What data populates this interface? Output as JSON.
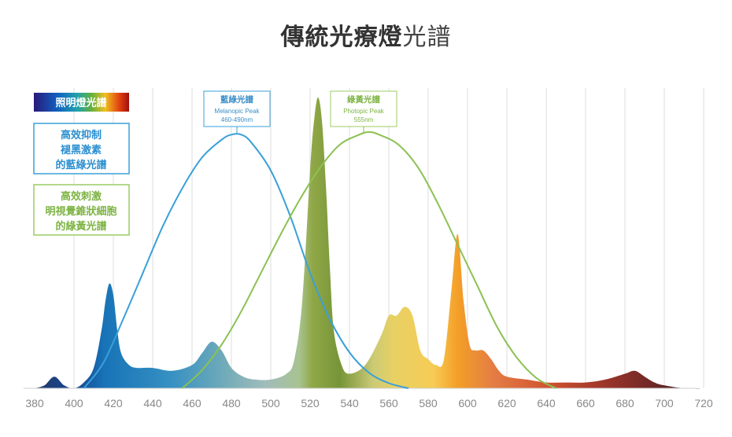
{
  "title": {
    "bold": "傳統光療燈",
    "light": "光譜"
  },
  "legend": {
    "spectrum": "照明燈光譜",
    "blue": [
      "高效抑制",
      "褪黑激素",
      "的藍綠光譜"
    ],
    "green": [
      "高效刺激",
      "明視覺錐狀細胞",
      "的綠黃光譜"
    ]
  },
  "annotations": {
    "melanopic": {
      "title": "藍綠光譜",
      "line1": "Melanopic Peak",
      "line2": "460-490nm"
    },
    "photopic": {
      "title": "綠黃光譜",
      "line1": "Photopic Peak",
      "line2": "555nm"
    }
  },
  "colors": {
    "blue_curve": "#3aa0d8",
    "green_curve": "#8cc152",
    "frame_green": "#9ccc65"
  },
  "chart_data": {
    "type": "line",
    "x_ticks": [
      380,
      400,
      420,
      440,
      460,
      480,
      500,
      520,
      540,
      560,
      580,
      600,
      620,
      640,
      660,
      680,
      700,
      720
    ],
    "xlim": [
      380,
      720
    ],
    "ylim": [
      0,
      1
    ],
    "grid": true,
    "series": [
      {
        "kind": "spectrum",
        "x": [
          380,
          385,
          390,
          395,
          400,
          405,
          410,
          414,
          416,
          418,
          420,
          422,
          424,
          428,
          432,
          440,
          450,
          460,
          465,
          470,
          475,
          480,
          486,
          492,
          500,
          508,
          512,
          516,
          520,
          522,
          524,
          526,
          528,
          530,
          532,
          536,
          540,
          548,
          556,
          560,
          564,
          568,
          572,
          576,
          580,
          584,
          588,
          592,
          595,
          598,
          601,
          604,
          608,
          612,
          616,
          620,
          630,
          640,
          650,
          660,
          670,
          680,
          685,
          690,
          695,
          700,
          710,
          720
        ],
        "y": [
          0.0,
          0.01,
          0.04,
          0.01,
          0.0,
          0.02,
          0.07,
          0.2,
          0.3,
          0.36,
          0.32,
          0.2,
          0.12,
          0.08,
          0.07,
          0.07,
          0.06,
          0.08,
          0.12,
          0.16,
          0.13,
          0.07,
          0.04,
          0.03,
          0.03,
          0.05,
          0.1,
          0.3,
          0.75,
          0.92,
          1.0,
          0.92,
          0.7,
          0.42,
          0.2,
          0.08,
          0.05,
          0.08,
          0.18,
          0.25,
          0.25,
          0.28,
          0.25,
          0.13,
          0.1,
          0.08,
          0.1,
          0.35,
          0.53,
          0.3,
          0.15,
          0.13,
          0.13,
          0.1,
          0.06,
          0.04,
          0.03,
          0.02,
          0.02,
          0.02,
          0.03,
          0.05,
          0.06,
          0.04,
          0.02,
          0.01,
          0.0,
          0.0
        ]
      },
      {
        "kind": "melanopic",
        "x": [
          405,
          415,
          425,
          435,
          445,
          455,
          465,
          475,
          480,
          485,
          490,
          500,
          510,
          520,
          530,
          540,
          550,
          560,
          570
        ],
        "y": [
          0.0,
          0.1,
          0.27,
          0.45,
          0.63,
          0.78,
          0.9,
          0.97,
          0.99,
          0.99,
          0.96,
          0.85,
          0.67,
          0.45,
          0.27,
          0.14,
          0.06,
          0.02,
          0.0
        ]
      },
      {
        "kind": "photopic",
        "x": [
          455,
          465,
          475,
          485,
          495,
          505,
          515,
          525,
          535,
          545,
          550,
          555,
          565,
          575,
          585,
          595,
          605,
          615,
          625,
          635,
          645
        ],
        "y": [
          0.0,
          0.07,
          0.17,
          0.3,
          0.45,
          0.6,
          0.74,
          0.86,
          0.95,
          0.99,
          1.0,
          0.99,
          0.95,
          0.86,
          0.72,
          0.56,
          0.4,
          0.24,
          0.12,
          0.04,
          0.0
        ]
      }
    ]
  }
}
